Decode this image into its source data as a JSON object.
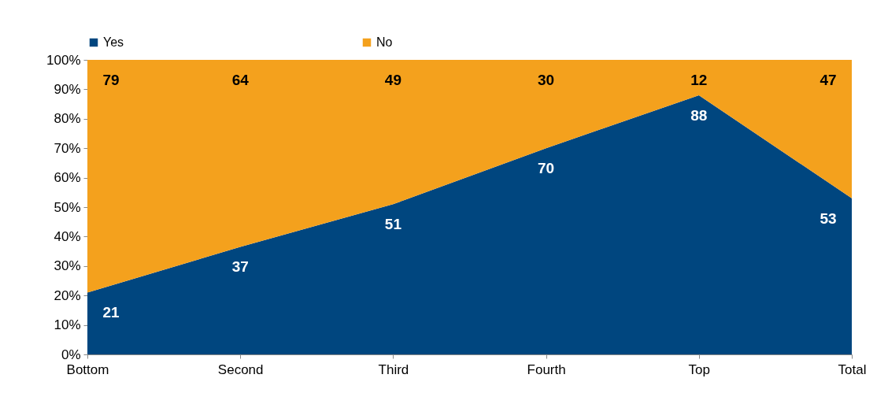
{
  "chart_data": {
    "type": "area",
    "stacked": true,
    "categories": [
      "Bottom",
      "Second",
      "Third",
      "Fourth",
      "Top",
      "Total"
    ],
    "series": [
      {
        "name": "Yes",
        "color": "#00467f",
        "values": [
          21,
          36.5,
          51,
          70,
          88,
          53
        ],
        "value_labels": [
          "21",
          "37",
          "51",
          "70",
          "88",
          "53"
        ]
      },
      {
        "name": "No",
        "color": "#f4a11d",
        "values": [
          79,
          63.5,
          49,
          30,
          12,
          47
        ],
        "value_labels": [
          "79",
          "64",
          "49",
          "30",
          "12",
          "47"
        ]
      }
    ],
    "ylim": [
      0,
      100
    ],
    "yticks": [
      {
        "value": 0,
        "label": "0%"
      },
      {
        "value": 10,
        "label": "10%"
      },
      {
        "value": 20,
        "label": "20%"
      },
      {
        "value": 30,
        "label": "30%"
      },
      {
        "value": 40,
        "label": "40%"
      },
      {
        "value": 50,
        "label": "50%"
      },
      {
        "value": 60,
        "label": "60%"
      },
      {
        "value": 70,
        "label": "70%"
      },
      {
        "value": 80,
        "label": "80%"
      },
      {
        "value": 90,
        "label": "90%"
      },
      {
        "value": 100,
        "label": "100%"
      }
    ],
    "grid": false,
    "legend": "top"
  }
}
